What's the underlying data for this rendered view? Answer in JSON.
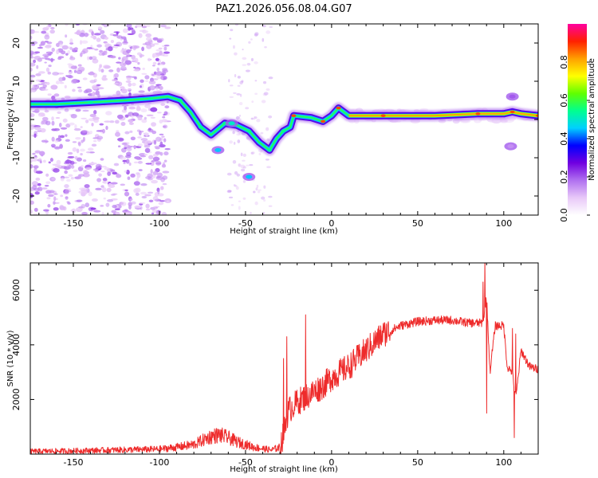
{
  "title": "PAZ1.2026.056.08.04.G07",
  "chart_data": [
    {
      "type": "heatmap",
      "name": "spectrogram",
      "xlabel": "Height of straight line (km)",
      "ylabel": "Frequency (Hz)",
      "xlim": [
        -175,
        120
      ],
      "ylim": [
        -25,
        25
      ],
      "xticks": [
        -150,
        -100,
        -50,
        0,
        50,
        100
      ],
      "yticks": [
        -20,
        -10,
        0,
        10,
        20
      ],
      "ridge": [
        {
          "x": -175,
          "y": 4
        },
        {
          "x": -160,
          "y": 4
        },
        {
          "x": -140,
          "y": 4.5
        },
        {
          "x": -120,
          "y": 5
        },
        {
          "x": -105,
          "y": 5.5
        },
        {
          "x": -95,
          "y": 6
        },
        {
          "x": -88,
          "y": 5
        },
        {
          "x": -82,
          "y": 2
        },
        {
          "x": -76,
          "y": -2
        },
        {
          "x": -70,
          "y": -4
        },
        {
          "x": -62,
          "y": -1
        },
        {
          "x": -55,
          "y": -1.5
        },
        {
          "x": -48,
          "y": -3
        },
        {
          "x": -42,
          "y": -6
        },
        {
          "x": -36,
          "y": -8
        },
        {
          "x": -32,
          "y": -5
        },
        {
          "x": -28,
          "y": -3
        },
        {
          "x": -24,
          "y": -2
        },
        {
          "x": -22,
          "y": 1
        },
        {
          "x": -12,
          "y": 0.5
        },
        {
          "x": -5,
          "y": -0.5
        },
        {
          "x": 0,
          "y": 1
        },
        {
          "x": 4,
          "y": 3
        },
        {
          "x": 10,
          "y": 1
        },
        {
          "x": 30,
          "y": 1
        },
        {
          "x": 60,
          "y": 1
        },
        {
          "x": 85,
          "y": 1.5
        },
        {
          "x": 100,
          "y": 1.5
        },
        {
          "x": 105,
          "y": 2
        },
        {
          "x": 110,
          "y": 1.5
        },
        {
          "x": 120,
          "y": 1
        }
      ],
      "blobs": [
        {
          "x": -66,
          "y": -8,
          "level": 0.35
        },
        {
          "x": -48,
          "y": -15,
          "level": 0.35
        },
        {
          "x": -58,
          "y": -1,
          "level": 0.4
        },
        {
          "x": 105,
          "y": 6,
          "level": 0.1
        },
        {
          "x": 104,
          "y": -7,
          "level": 0.05
        }
      ],
      "colorbar": {
        "label": "Normalized spectral amplitude",
        "range": [
          0,
          1
        ],
        "ticks": [
          0.0,
          0.2,
          0.4,
          0.6,
          0.8
        ],
        "tick_labels": [
          "0.0",
          "0.2",
          "0.4",
          "0.6",
          "0.8"
        ],
        "colors": [
          "#ffffff",
          "#e8c8f8",
          "#b070f0",
          "#7000e0",
          "#0000ff",
          "#00d0ff",
          "#00ff90",
          "#60ff00",
          "#ffff00",
          "#ffa000",
          "#ff2000",
          "#ff00a0"
        ]
      }
    },
    {
      "type": "line",
      "name": "snr",
      "xlabel": "Height of straight line (km)",
      "ylabel": "SNR (10 * v/v)",
      "xlim": [
        -175,
        120
      ],
      "ylim": [
        0,
        7000
      ],
      "xticks": [
        -150,
        -100,
        -50,
        0,
        50,
        100
      ],
      "yticks": [
        2000,
        4000,
        6000
      ],
      "color": "#ee2b2b",
      "series": [
        {
          "name": "SNR",
          "x": [
            -175,
            -150,
            -125,
            -100,
            -90,
            -80,
            -75,
            -70,
            -65,
            -60,
            -55,
            -50,
            -45,
            -40,
            -35,
            -30,
            -28,
            -25,
            -20,
            -15,
            -10,
            -5,
            0,
            10,
            20,
            30,
            40,
            50,
            60,
            70,
            80,
            88,
            90,
            92,
            95,
            100,
            102,
            105,
            107,
            110,
            115,
            120
          ],
          "y": [
            100,
            120,
            150,
            180,
            250,
            350,
            500,
            650,
            700,
            600,
            450,
            350,
            250,
            200,
            150,
            250,
            700,
            1600,
            1900,
            2100,
            2300,
            2500,
            2800,
            3200,
            3800,
            4400,
            4700,
            4850,
            4900,
            4900,
            4800,
            4800,
            5800,
            3000,
            4700,
            4700,
            3200,
            3000,
            2000,
            3800,
            3200,
            3100
          ]
        }
      ]
    }
  ]
}
